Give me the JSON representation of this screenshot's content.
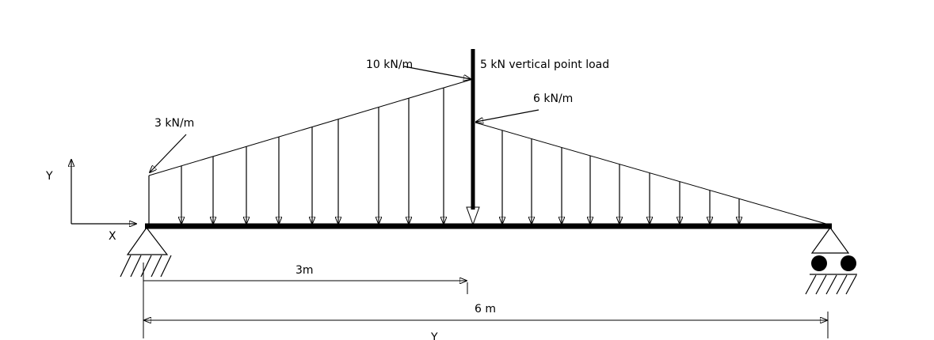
{
  "labels": {
    "load_left": "3 kN/m",
    "load_peak": "10 kN/m",
    "point_load": "5 kN vertical point load",
    "load_right": "6 kN/m"
  },
  "axes": {
    "y": "Y",
    "x": "X"
  },
  "dimensions": {
    "short": "3m",
    "long": "6 m",
    "bottom": "Y"
  }
}
